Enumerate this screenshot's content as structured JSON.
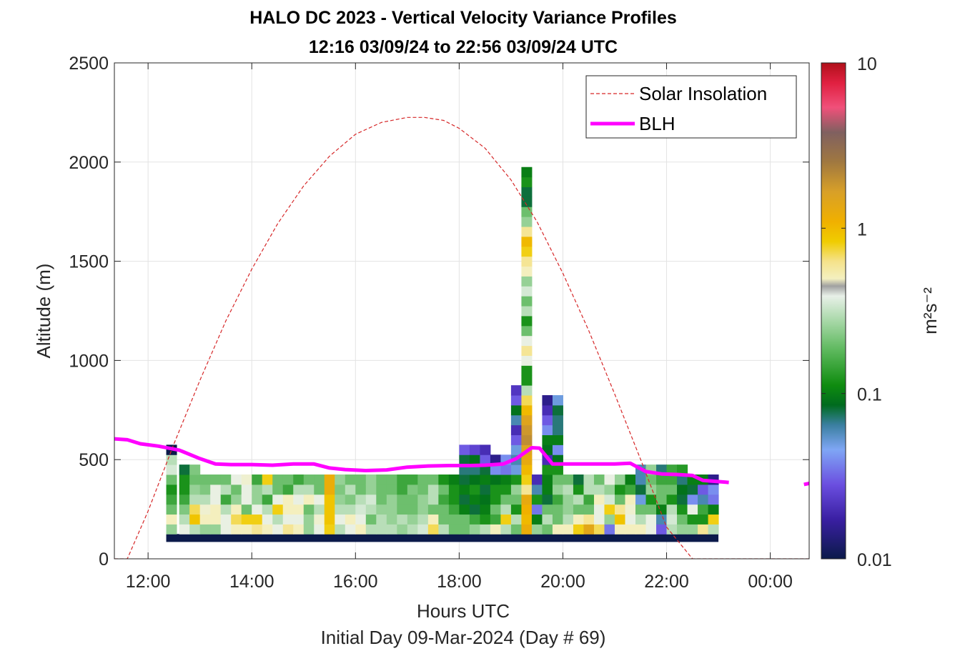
{
  "chart_data": {
    "type": "heatmap",
    "title": "HALO DC 2023 - Vertical Velocity Variance Profiles",
    "subtitle": "12:16 03/09/24 to 22:56 03/09/24  UTC",
    "xlabel": "Hours UTC",
    "xlabel2": "Initial Day 09-Mar-2024 (Day # 69)",
    "ylabel": "Altitude (m)",
    "x_ticks": [
      "12:00",
      "14:00",
      "16:00",
      "18:00",
      "20:00",
      "22:00",
      "00:00"
    ],
    "x_tick_values": [
      12,
      14,
      16,
      18,
      20,
      22,
      24
    ],
    "xlim": [
      11.35,
      24.75
    ],
    "y_ticks": [
      "0",
      "500",
      "1000",
      "1500",
      "2000",
      "2500"
    ],
    "y_tick_values": [
      0,
      500,
      1000,
      1500,
      2000,
      2500
    ],
    "ylim": [
      0,
      2500
    ],
    "grid": true,
    "legend_position": "top-right",
    "colorbar": {
      "label": "m²s⁻²",
      "scale": "log",
      "range": [
        0.01,
        10
      ],
      "tick_labels": [
        "0.01",
        "0.1",
        "1",
        "10"
      ],
      "tick_values": [
        0.01,
        0.1,
        1,
        10
      ]
    },
    "series": [
      {
        "name": "Solar Insolation",
        "style": "dashed",
        "color": "#d62728",
        "x": [
          11.35,
          11.45,
          11.6,
          12.0,
          12.5,
          13.0,
          13.5,
          14.0,
          14.5,
          15.0,
          15.5,
          16.0,
          16.5,
          17.0,
          17.33,
          17.7,
          18.0,
          18.5,
          19.0,
          19.5,
          20.0,
          20.5,
          21.0,
          21.5,
          22.0,
          22.5,
          23.0,
          23.1,
          24.75
        ],
        "y": [
          0,
          0,
          0,
          240,
          580,
          900,
          1200,
          1460,
          1690,
          1880,
          2030,
          2140,
          2200,
          2225,
          2225,
          2210,
          2170,
          2070,
          1910,
          1700,
          1440,
          1150,
          830,
          500,
          160,
          0,
          0,
          0,
          0
        ]
      },
      {
        "name": "BLH",
        "style": "solid",
        "color": "#ff00ff",
        "x": [
          11.35,
          11.6,
          11.85,
          12.2,
          12.6,
          13.0,
          13.3,
          13.6,
          14.0,
          14.4,
          14.8,
          15.2,
          15.5,
          15.8,
          16.2,
          16.6,
          17.0,
          17.4,
          17.8,
          18.2,
          18.5,
          18.85,
          19.1,
          19.4,
          19.55,
          19.8,
          20.2,
          20.6,
          21.0,
          21.3,
          21.6,
          21.9,
          22.2,
          22.5,
          22.7,
          23.2
        ],
        "y": [
          605,
          600,
          580,
          568,
          548,
          505,
          478,
          475,
          475,
          472,
          478,
          478,
          458,
          450,
          445,
          448,
          462,
          468,
          470,
          470,
          472,
          478,
          505,
          560,
          558,
          478,
          478,
          478,
          478,
          482,
          440,
          428,
          425,
          420,
          395,
          385
        ],
        "x2": [
          24.65,
          24.75
        ],
        "y2": [
          375,
          380
        ]
      }
    ],
    "heatmap": {
      "time_step_hours": 0.2,
      "altitude_step_m": 50,
      "base_row_altitude_m": 100,
      "base_row_value": 0.01,
      "columns": [
        {
          "x": 12.35,
          "values": [
            0.25,
            0.5,
            0.2,
            0.15,
            0.12,
            0.2,
            0.35,
            0.3,
            0.01
          ]
        },
        {
          "x": 12.6,
          "values": [
            0.4,
            0.3,
            0.22,
            0.15,
            0.12,
            0.12,
            0.08
          ]
        },
        {
          "x": 12.8,
          "values": [
            0.3,
            0.9,
            0.7,
            0.3,
            0.25,
            0.2,
            0.22
          ]
        },
        {
          "x": 13.0,
          "values": [
            0.25,
            0.5,
            0.45,
            0.3,
            0.22,
            0.2
          ]
        },
        {
          "x": 13.2,
          "values": [
            0.25,
            0.5,
            0.5,
            0.4,
            0.4,
            0.2
          ]
        },
        {
          "x": 13.4,
          "values": [
            0.4,
            0.4,
            0.3,
            0.15,
            0.3,
            0.2
          ]
        },
        {
          "x": 13.6,
          "values": [
            0.5,
            0.7,
            0.5,
            0.25,
            0.2,
            0.4
          ]
        },
        {
          "x": 13.8,
          "values": [
            0.5,
            0.8,
            0.2,
            0.4,
            0.4,
            0.45
          ]
        },
        {
          "x": 14.0,
          "values": [
            0.6,
            0.8,
            0.4,
            0.25,
            0.25,
            0.15
          ]
        },
        {
          "x": 14.2,
          "values": [
            0.5,
            0.4,
            0.3,
            0.15,
            0.3,
            0.8
          ]
        },
        {
          "x": 14.4,
          "values": [
            0.4,
            0.3,
            0.8,
            0.4,
            0.2,
            0.2
          ]
        },
        {
          "x": 14.6,
          "values": [
            0.6,
            0.4,
            0.5,
            0.5,
            0.15,
            0.2
          ]
        },
        {
          "x": 14.8,
          "values": [
            0.5,
            0.4,
            0.5,
            0.4,
            0.3,
            0.15
          ]
        },
        {
          "x": 15.0,
          "values": [
            0.25,
            0.25,
            0.2,
            0.5,
            0.3,
            0.2
          ]
        },
        {
          "x": 15.2,
          "values": [
            0.4,
            0.45,
            0.3,
            0.4,
            0.2,
            0.2
          ]
        },
        {
          "x": 15.4,
          "values": [
            0.8,
            0.9,
            0.9,
            0.9,
            1.2,
            1.2
          ]
        },
        {
          "x": 15.6,
          "values": [
            0.3,
            0.4,
            0.3,
            0.25,
            0.22,
            0.25
          ]
        },
        {
          "x": 15.8,
          "values": [
            0.4,
            0.5,
            0.3,
            0.22,
            0.3,
            0.2
          ]
        },
        {
          "x": 16.0,
          "values": [
            0.5,
            0.4,
            0.35,
            0.3,
            0.2,
            0.2
          ]
        },
        {
          "x": 16.2,
          "values": [
            0.3,
            0.2,
            0.3,
            0.35,
            0.25,
            0.25
          ]
        },
        {
          "x": 16.4,
          "values": [
            0.3,
            0.3,
            0.25,
            0.2,
            0.2,
            0.2
          ]
        },
        {
          "x": 16.6,
          "values": [
            0.3,
            0.25,
            0.25,
            0.25,
            0.2,
            0.2
          ]
        },
        {
          "x": 16.8,
          "values": [
            0.25,
            0.3,
            0.2,
            0.2,
            0.15,
            0.15
          ]
        },
        {
          "x": 17.0,
          "values": [
            0.3,
            0.25,
            0.2,
            0.2,
            0.22,
            0.15
          ]
        },
        {
          "x": 17.2,
          "values": [
            0.35,
            0.3,
            0.25,
            0.25,
            0.2,
            0.2
          ]
        },
        {
          "x": 17.4,
          "values": [
            0.7,
            0.5,
            0.2,
            0.3,
            0.3,
            0.2
          ]
        },
        {
          "x": 17.6,
          "values": [
            0.3,
            0.2,
            0.2,
            0.15,
            0.2,
            0.12
          ]
        },
        {
          "x": 17.8,
          "values": [
            0.2,
            0.2,
            0.15,
            0.12,
            0.12,
            0.1
          ]
        },
        {
          "x": 18.0,
          "values": [
            0.2,
            0.2,
            0.1,
            0.08,
            0.1,
            0.08,
            0.07,
            0.08,
            0.03
          ]
        },
        {
          "x": 18.2,
          "values": [
            0.25,
            0.15,
            0.08,
            0.1,
            0.12,
            0.09,
            0.07,
            0.09,
            0.025
          ]
        },
        {
          "x": 18.4,
          "values": [
            0.3,
            0.12,
            0.1,
            0.09,
            0.08,
            0.1,
            0.08,
            0.03,
            0.02
          ]
        },
        {
          "x": 18.6,
          "values": [
            0.5,
            0.15,
            0.2,
            0.12,
            0.12,
            0.09,
            0.04,
            0.015
          ]
        },
        {
          "x": 18.8,
          "values": [
            0.3,
            0.8,
            0.3,
            0.2,
            0.12,
            0.1,
            0.035,
            0.04
          ]
        },
        {
          "x": 19.0,
          "values": [
            0.2,
            0.3,
            0.12,
            0.2,
            0.25,
            0.12,
            0.05,
            0.06,
            0.05,
            0.03,
            0.02,
            0.06,
            0.09,
            0.03,
            0.022
          ]
        },
        {
          "x": 19.2,
          "values": [
            1.2,
            1.0,
            1.1,
            1.3,
            0.6,
            0.8,
            1.0,
            1.3,
            1.5,
            2.0,
            1.8,
            1.5,
            1.0,
            0.7,
            0.3,
            0.12,
            0.12,
            0.4,
            0.6,
            0.4,
            0.2,
            0.12,
            0.3,
            0.2,
            0.35,
            0.25,
            0.5,
            0.6,
            0.8,
            1.0,
            0.6,
            0.25,
            0.2,
            0.08,
            0.08,
            0.12,
            0.1
          ]
        },
        {
          "x": 19.4,
          "values": [
            0.25,
            0.1,
            0.035,
            0.12,
            0.06,
            0.02
          ]
        },
        {
          "x": 19.6,
          "values": [
            0.2,
            0.3,
            0.2,
            0.08,
            0.1,
            0.1,
            0.12,
            0.02,
            0.09,
            0.1,
            0.04,
            0.03,
            0.02,
            0.015
          ]
        },
        {
          "x": 19.8,
          "values": [
            0.5,
            0.2,
            0.2,
            0.15,
            0.25,
            0.2,
            0.12,
            0.09,
            0.04,
            0.1,
            0.07,
            0.07,
            0.08,
            0.05
          ]
        },
        {
          "x": 20.0,
          "values": [
            0.5,
            0.3,
            0.25,
            0.25,
            0.3,
            0.2
          ]
        },
        {
          "x": 20.2,
          "values": [
            0.8,
            0.5,
            0.2,
            0.3,
            0.12,
            0.08
          ]
        },
        {
          "x": 20.4,
          "values": [
            1.4,
            0.6,
            0.2,
            0.15,
            0.3,
            0.3
          ]
        },
        {
          "x": 20.6,
          "values": [
            0.7,
            0.4,
            0.4,
            0.5,
            0.3,
            0.2
          ]
        },
        {
          "x": 20.8,
          "values": [
            0.035,
            0.25,
            0.8,
            0.35,
            0.25,
            0.4
          ]
        },
        {
          "x": 21.0,
          "values": [
            0.5,
            0.9,
            0.6,
            0.2,
            0.12,
            0.25
          ]
        },
        {
          "x": 21.2,
          "values": [
            0.5,
            0.4,
            0.45,
            0.5,
            0.15,
            0.1
          ]
        },
        {
          "x": 21.4,
          "values": [
            0.5,
            0.3,
            0.2,
            0.05,
            0.08,
            0.06,
            0.06
          ]
        },
        {
          "x": 21.6,
          "values": [
            0.4,
            0.4,
            0.2,
            0.12,
            0.25,
            0.2,
            0.25
          ]
        },
        {
          "x": 21.8,
          "values": [
            0.03,
            0.06,
            0.1,
            0.2,
            0.2,
            0.15,
            0.07
          ]
        },
        {
          "x": 22.0,
          "values": [
            0.3,
            0.35,
            0.3,
            0.12,
            0.2,
            0.15,
            0.15
          ]
        },
        {
          "x": 22.2,
          "values": [
            0.25,
            0.2,
            0.12,
            0.08,
            0.09,
            0.07,
            0.13
          ]
        },
        {
          "x": 22.4,
          "values": [
            0.25,
            0.12,
            0.4,
            0.04,
            0.08,
            0.1
          ]
        },
        {
          "x": 22.6,
          "values": [
            0.6,
            0.12,
            0.15,
            0.06,
            0.03,
            0.1
          ]
        },
        {
          "x": 22.8,
          "values": [
            0.3,
            0.8,
            0.1,
            0.035,
            0.04,
            0.015
          ]
        }
      ]
    }
  },
  "legend": {
    "solar_label": "Solar Insolation",
    "blh_label": "BLH"
  },
  "colors": {
    "solar": "#d62728",
    "blh": "#ff00ff",
    "base_row": "#0b1a4a"
  }
}
